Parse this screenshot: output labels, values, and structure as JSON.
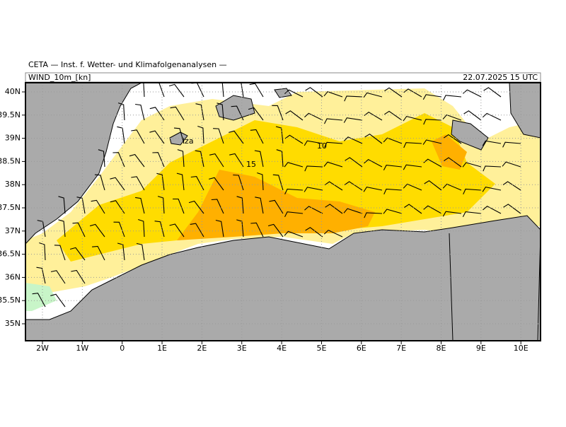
{
  "header": {
    "title": "CETA — Inst. f. Wetter- und Klimafolgenanalysen —",
    "field": "WIND_10m_[kn]",
    "valid_time": "22.07.2025 15 UTC"
  },
  "axes": {
    "x_labels": [
      "2W",
      "1W",
      "0",
      "1E",
      "2E",
      "3E",
      "4E",
      "5E",
      "6E",
      "7E",
      "8E",
      "9E",
      "10E"
    ],
    "y_labels": [
      "40N",
      "39.5N",
      "39N",
      "38.5N",
      "38N",
      "37.5N",
      "37N",
      "36.5N",
      "36N",
      "35.5N",
      "35N"
    ]
  },
  "map": {
    "contour_labels": [
      "10",
      "15"
    ],
    "place_labels": [
      "iza"
    ]
  }
}
